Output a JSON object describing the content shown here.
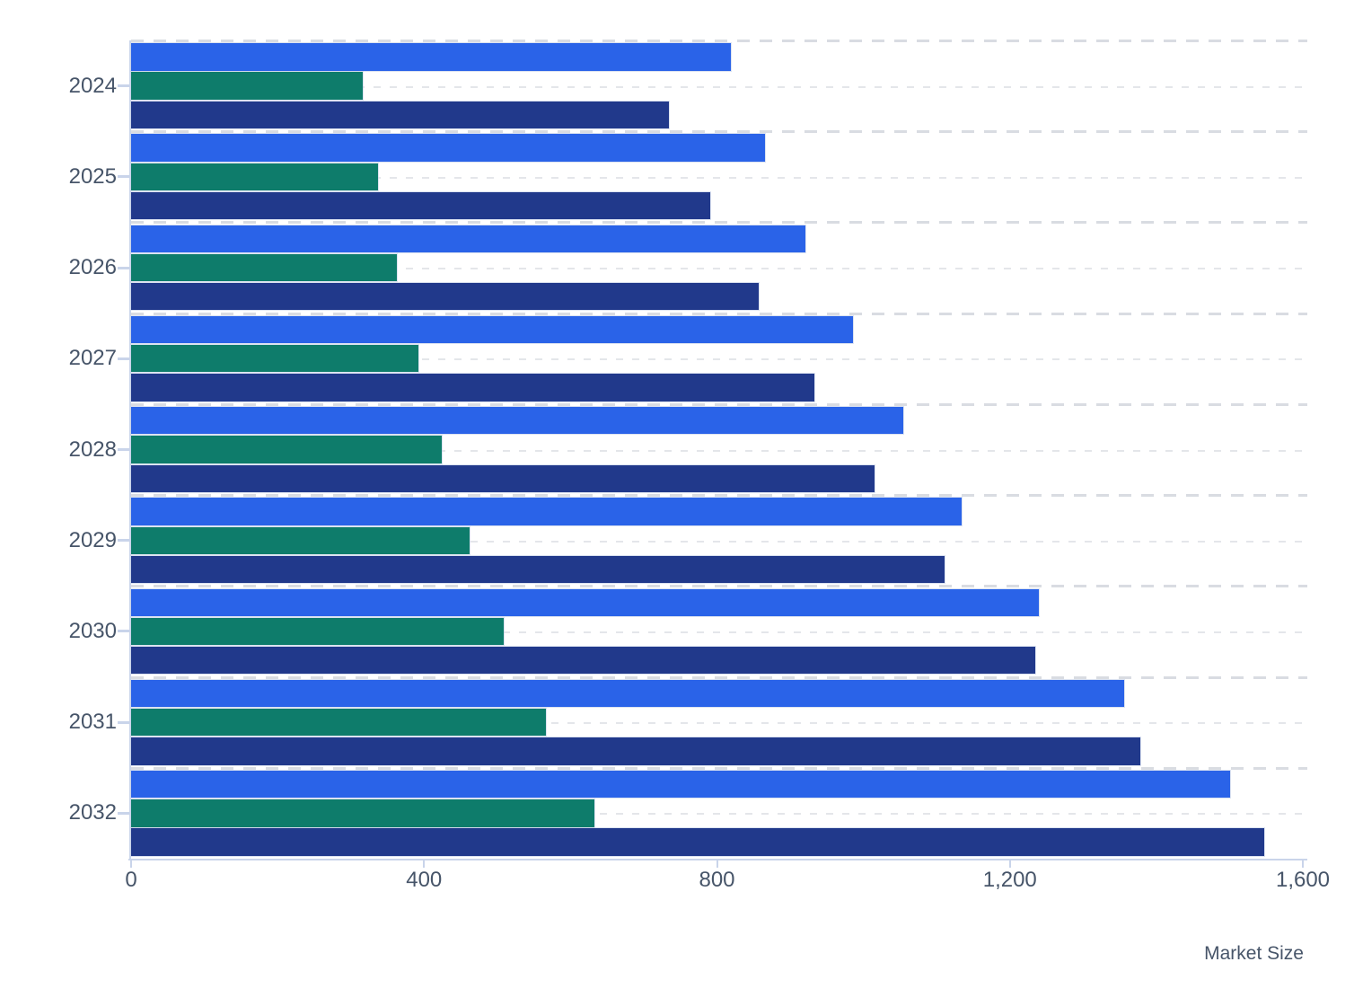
{
  "chart_data": {
    "type": "bar",
    "orientation": "horizontal",
    "title": "",
    "xlabel": "Market Size",
    "ylabel": "",
    "xlim": [
      0,
      1600
    ],
    "grid": "dashed horizontal band lines",
    "legend": "none",
    "categories": [
      "2024",
      "2025",
      "2026",
      "2027",
      "2028",
      "2029",
      "2030",
      "2031",
      "2032"
    ],
    "x_ticks": {
      "labels": [
        "0",
        "400",
        "800",
        "1,200",
        "1,600"
      ],
      "values": [
        0,
        400,
        800,
        1200,
        1600
      ]
    },
    "series": [
      {
        "name": "blue",
        "color": "#2A63E8",
        "values": [
          819,
          866,
          921,
          986,
          1054,
          1134,
          1239,
          1356,
          1501
        ]
      },
      {
        "name": "teal",
        "color": "#0E7C6B",
        "values": [
          316,
          337,
          363,
          392,
          424,
          462,
          509,
          566,
          633
        ]
      },
      {
        "name": "navy",
        "color": "#21398B",
        "values": [
          735,
          791,
          857,
          933,
          1015,
          1111,
          1235,
          1378,
          1547
        ]
      }
    ]
  },
  "colors": {
    "axis_line": "#C9D4EA",
    "grid_boundary": "#D9DCE2",
    "grid_center": "#E4E6EA",
    "tick_label": "#475569",
    "axis_title": "#475569",
    "background": "#FFFFFF"
  }
}
